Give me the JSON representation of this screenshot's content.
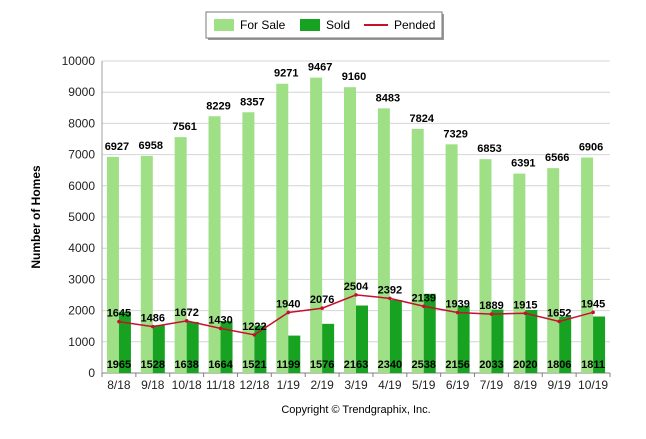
{
  "chart_data": {
    "type": "bar",
    "title": "",
    "xlabel": "",
    "ylabel": "Number of Homes",
    "ylim": [
      0,
      10000
    ],
    "yticks": [
      0,
      1000,
      2000,
      3000,
      4000,
      5000,
      6000,
      7000,
      8000,
      9000,
      10000
    ],
    "grid": true,
    "legend_position": "top-center",
    "categories": [
      "8/18",
      "9/18",
      "10/18",
      "11/18",
      "12/18",
      "1/19",
      "2/19",
      "3/19",
      "4/19",
      "5/19",
      "6/19",
      "7/19",
      "8/19",
      "9/19",
      "10/19"
    ],
    "series": [
      {
        "name": "For Sale",
        "type": "bar",
        "color": "#9fdf86",
        "values": [
          6927,
          6958,
          7561,
          8229,
          8357,
          9271,
          9467,
          9160,
          8483,
          7824,
          7329,
          6853,
          6391,
          6566,
          6906
        ]
      },
      {
        "name": "Sold",
        "type": "bar",
        "color": "#17a321",
        "values": [
          1965,
          1528,
          1638,
          1664,
          1521,
          1199,
          1576,
          2163,
          2340,
          2538,
          2156,
          2033,
          2020,
          1806,
          1811
        ]
      },
      {
        "name": "Pended",
        "type": "line",
        "color": "#c8102e",
        "values": [
          1645,
          1486,
          1672,
          1430,
          1222,
          1940,
          2076,
          2504,
          2392,
          2139,
          1939,
          1889,
          1915,
          1652,
          1945
        ]
      }
    ],
    "footer": "Copyright © Trendgraphix, Inc."
  }
}
